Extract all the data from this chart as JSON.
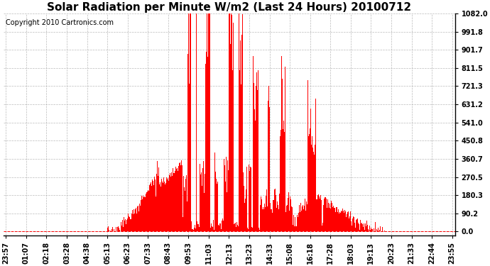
{
  "title": "Solar Radiation per Minute W/m2 (Last 24 Hours) 20100712",
  "copyright": "Copyright 2010 Cartronics.com",
  "ymax": 1082.0,
  "yticks": [
    0.0,
    90.2,
    180.3,
    270.5,
    360.7,
    450.8,
    541.0,
    631.2,
    721.3,
    811.5,
    901.7,
    991.8,
    1082.0
  ],
  "bar_color": "#ff0000",
  "background_color": "#ffffff",
  "grid_color": "#aaaaaa",
  "xtick_labels": [
    "23:57",
    "01:07",
    "02:18",
    "03:28",
    "04:38",
    "05:13",
    "06:23",
    "07:33",
    "08:43",
    "09:53",
    "11:03",
    "12:13",
    "13:23",
    "14:33",
    "15:08",
    "16:18",
    "17:28",
    "18:03",
    "19:13",
    "20:23",
    "21:33",
    "22:44",
    "23:55"
  ],
  "title_fontsize": 11,
  "copyright_fontsize": 7,
  "tick_fontsize": 7,
  "n_points": 1440
}
